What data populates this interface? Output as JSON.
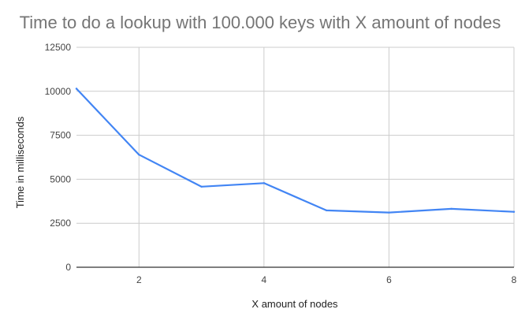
{
  "chart_data": {
    "type": "line",
    "title": "Time to do a lookup with 100.000 keys with X amount of nodes",
    "xlabel": "X amount of nodes",
    "ylabel": "Time in milliseconds",
    "x": [
      1,
      2,
      3,
      4,
      5,
      6,
      7,
      8
    ],
    "series": [
      {
        "values": [
          10150,
          6400,
          4580,
          4780,
          3230,
          3110,
          3320,
          3150
        ],
        "color": "#4285f4"
      }
    ],
    "xlim": [
      1,
      8
    ],
    "ylim": [
      0,
      12500
    ],
    "x_ticks": [
      "2",
      "4",
      "6",
      "8"
    ],
    "y_ticks": [
      "0",
      "2500",
      "5000",
      "7500",
      "10000",
      "12500"
    ],
    "grid": true,
    "legend": "none"
  },
  "colors": {
    "title": "#757575",
    "grid": "#cccccc",
    "axis": "#333333",
    "text": "#444444"
  }
}
